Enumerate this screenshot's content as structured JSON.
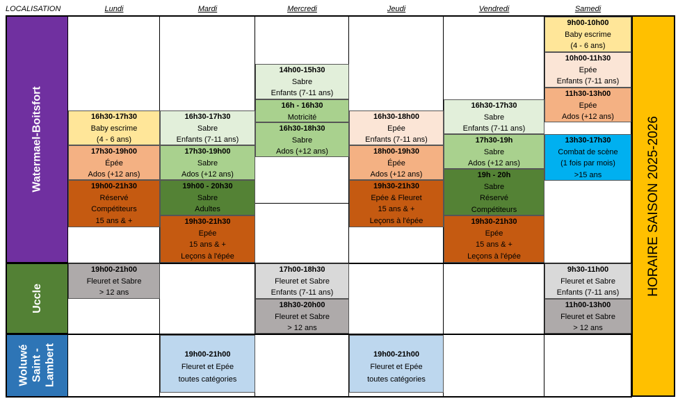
{
  "header": {
    "localisation": "LOCALISATION",
    "days": [
      "Lundi",
      "Mardi",
      "Mercredi",
      "Jeudi",
      "Vendredi",
      "Samedi"
    ]
  },
  "locations": [
    "Watermael-Boitsfort",
    "Uccle",
    "Woluwé Saint - Lambert"
  ],
  "season_label": "HORAIRE SAISON 2025-2026",
  "colors": {
    "purple": "#7030a0",
    "green": "#538135",
    "blue": "#2e75b6",
    "yellow": "#ffe699",
    "salmon": "#f4b183",
    "orange_dark": "#c55a11",
    "light_green": "#e2efda",
    "mid_green": "#a9d18e",
    "dark_green": "#548235",
    "peach": "#fbe5d6",
    "grey": "#aeaaaa",
    "light_grey": "#d9d9d9",
    "light_blue": "#bdd7ee",
    "cyan": "#00b0f0",
    "gold": "#ffc000"
  },
  "sessions": {
    "lundi": [
      {
        "time": "16h30-17h30",
        "lines": [
          "Baby escrime",
          "(4 - 6 ans)"
        ]
      },
      {
        "time": "17h30-19h00",
        "lines": [
          "Épée",
          "Ados (+12 ans)"
        ]
      },
      {
        "time": "19h00-21h30",
        "lines": [
          "Réservé",
          "Compétiteurs",
          "15  ans & +"
        ]
      },
      {
        "time": "19h00-21h00",
        "lines": [
          "Fleuret et Sabre",
          "> 12 ans"
        ]
      }
    ],
    "mardi": [
      {
        "time": "16h30-17h30",
        "lines": [
          "Sabre",
          "Enfants (7-11 ans)"
        ]
      },
      {
        "time": "17h30-19h00",
        "lines": [
          "Sabre",
          "Ados (+12 ans)"
        ]
      },
      {
        "time": "19h00 - 20h30",
        "lines": [
          "Sabre",
          "Adultes"
        ]
      },
      {
        "time": "19h30-21h30",
        "lines": [
          "Epée",
          "15  ans & +",
          "Leçons à l'épée"
        ]
      },
      {
        "time": "19h00-21h00",
        "lines": [
          "Fleuret et Epée",
          "toutes catégories"
        ]
      }
    ],
    "mercredi": [
      {
        "time": "14h00-15h30",
        "lines": [
          "Sabre",
          "Enfants (7-11 ans)"
        ]
      },
      {
        "time": "16h - 16h30",
        "lines": [
          "Motricité"
        ]
      },
      {
        "time": "16h30-18h30",
        "lines": [
          "Sabre",
          "Ados (+12 ans)"
        ]
      },
      {
        "time": "17h00-18h30",
        "lines": [
          "Fleuret et Sabre",
          "Enfants (7-11 ans)"
        ]
      },
      {
        "time": "18h30-20h00",
        "lines": [
          "Fleuret et Sabre",
          "> 12 ans"
        ]
      }
    ],
    "jeudi": [
      {
        "time": "16h30-18h00",
        "lines": [
          "Epée",
          "Enfants (7-11 ans)"
        ]
      },
      {
        "time": "18h00-19h30",
        "lines": [
          "Épée",
          "Ados (+12 ans)"
        ]
      },
      {
        "time": "19h30-21h30",
        "lines": [
          "Epée & Fleuret",
          "15  ans & +",
          "Leçons à l'épée"
        ]
      },
      {
        "time": "19h00-21h00",
        "lines": [
          "Fleuret et Epée",
          "toutes catégories"
        ]
      }
    ],
    "vendredi": [
      {
        "time": "16h30-17h30",
        "lines": [
          "Sabre",
          "Enfants (7-11 ans)"
        ]
      },
      {
        "time": "17h30-19h",
        "lines": [
          "Sabre",
          "Ados (+12 ans)"
        ]
      },
      {
        "time": "19h - 20h",
        "lines": [
          "Sabre",
          "Réservé",
          "Compétiteurs"
        ]
      },
      {
        "time": "19h30-21h30",
        "lines": [
          "Epée",
          "15  ans & +",
          "Leçons à l'épée"
        ]
      }
    ],
    "samedi": [
      {
        "time": "9h00-10h00",
        "lines": [
          "Baby escrime",
          "(4 - 6 ans)"
        ]
      },
      {
        "time": "10h00-11h30",
        "lines": [
          "Epée",
          "Enfants (7-11 ans)"
        ]
      },
      {
        "time": "11h30-13h00",
        "lines": [
          "Epée",
          "Ados (+12 ans)"
        ]
      },
      {
        "time": "13h30-17h30",
        "lines": [
          "Combat de scène",
          "(1 fois par mois)",
          ">15 ans"
        ]
      },
      {
        "time": "9h30-11h00",
        "lines": [
          "Fleuret et Sabre",
          "Enfants (7-11 ans)"
        ]
      },
      {
        "time": "11h00-13h00",
        "lines": [
          "Fleuret et Sabre",
          "> 12 ans"
        ]
      }
    ]
  }
}
